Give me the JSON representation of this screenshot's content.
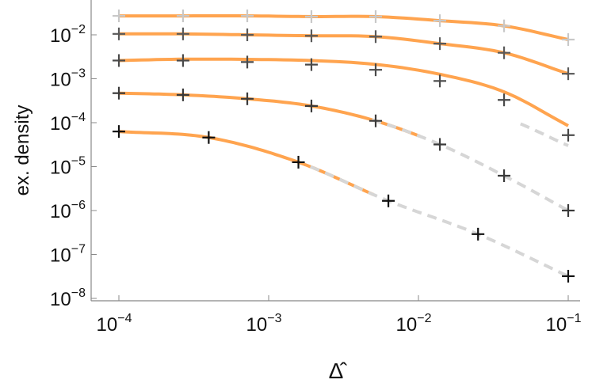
{
  "chart_data": {
    "type": "scatter",
    "title": "",
    "xlabel": "Δ̂",
    "ylabel": "ex. density",
    "xscale": "log",
    "yscale": "log",
    "xlim": [
      0.0001,
      0.1
    ],
    "ylim": [
      1e-08,
      0.05
    ],
    "grid": false,
    "x_ticks": [
      {
        "value": 0.0001,
        "base": "10",
        "exp": "−4"
      },
      {
        "value": 0.001,
        "base": "10",
        "exp": "−3"
      },
      {
        "value": 0.01,
        "base": "10",
        "exp": "−2"
      },
      {
        "value": 0.1,
        "base": "10",
        "exp": "−1"
      }
    ],
    "y_ticks": [
      {
        "value": 0.01,
        "base": "10",
        "exp": "−2"
      },
      {
        "value": 0.001,
        "base": "10",
        "exp": "−3"
      },
      {
        "value": 0.0001,
        "base": "10",
        "exp": "−4"
      },
      {
        "value": 1e-05,
        "base": "10",
        "exp": "−5"
      },
      {
        "value": 1e-06,
        "base": "10",
        "exp": "−6"
      },
      {
        "value": 1e-07,
        "base": "10",
        "exp": "−7"
      },
      {
        "value": 1e-08,
        "base": "10",
        "exp": "−8"
      }
    ],
    "colors": {
      "fit_solid": "#ff9a3c",
      "fit_dashed": "#d6d6d6",
      "axis": "#888888"
    },
    "series": [
      {
        "marker_color": "#c8c8c8",
        "x": [
          0.0001,
          0.000268,
          0.00072,
          0.00193,
          0.00518,
          0.0139,
          0.0373,
          0.1
        ],
        "y": [
          0.027,
          0.027,
          0.027,
          0.026,
          0.026,
          0.021,
          0.016,
          0.0078
        ],
        "fits": [
          {
            "style": "solid",
            "x_range": [
              0.0001,
              0.1
            ]
          }
        ]
      },
      {
        "marker_color": "#5a5a5a",
        "x": [
          0.0001,
          0.000268,
          0.00072,
          0.00193,
          0.00518,
          0.0139,
          0.0373,
          0.1
        ],
        "y": [
          0.0105,
          0.0105,
          0.01,
          0.0095,
          0.0091,
          0.0063,
          0.0039,
          0.0013
        ],
        "fits": [
          {
            "style": "solid",
            "x_range": [
              0.0001,
              0.1
            ]
          }
        ]
      },
      {
        "marker_color": "#4a4a4a",
        "x": [
          0.0001,
          0.000268,
          0.00072,
          0.00193,
          0.00518,
          0.0139,
          0.0373,
          0.1
        ],
        "y": [
          0.0026,
          0.0026,
          0.0024,
          0.0021,
          0.0016,
          0.00089,
          0.00033,
          5.2e-05
        ],
        "fits": [
          {
            "style": "solid",
            "x_range": [
              0.0001,
              0.1
            ],
            "y_end": 8.5e-05
          },
          {
            "style": "dashed",
            "x_range": [
              0.048,
              0.1
            ],
            "y_start": 9.4e-05,
            "y_end": 3e-05
          }
        ]
      },
      {
        "marker_color": "#3a3a3a",
        "x": [
          0.0001,
          0.000268,
          0.00072,
          0.00193,
          0.00518,
          0.0139,
          0.0373,
          0.1
        ],
        "y": [
          0.00047,
          0.00043,
          0.00035,
          0.00024,
          0.00011,
          3.2e-05,
          6.2e-06,
          1e-06
        ],
        "fits": [
          {
            "style": "solid",
            "x_range": [
              0.0001,
              0.0102
            ]
          },
          {
            "style": "dashed",
            "x_range": [
              0.0049,
              0.1
            ]
          }
        ]
      },
      {
        "marker_color": "#111111",
        "x": [
          0.0001,
          0.000398,
          0.00158,
          0.0063,
          0.025,
          0.1
        ],
        "y": [
          6.3e-05,
          4.6e-05,
          1.26e-05,
          1.66e-06,
          2.9e-07,
          3.2e-08
        ],
        "fits": [
          {
            "style": "solid",
            "x_range": [
              0.0001,
              0.005
            ]
          },
          {
            "style": "dashed",
            "x_range": [
              0.0019,
              0.1
            ]
          }
        ]
      }
    ]
  }
}
